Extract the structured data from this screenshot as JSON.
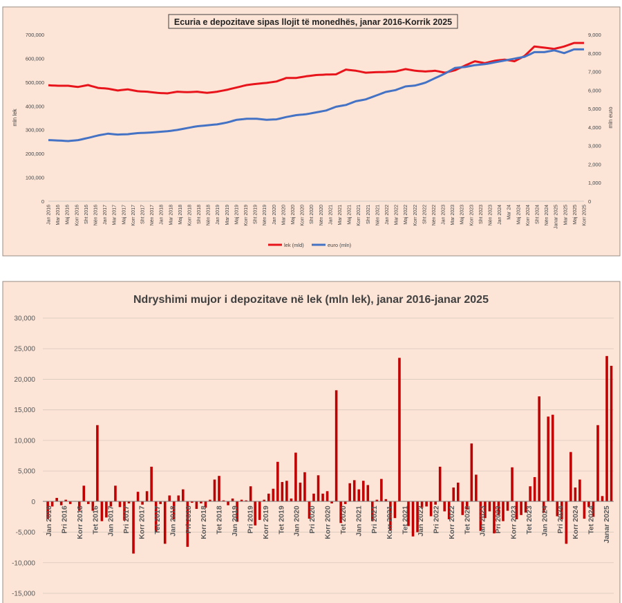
{
  "chart_data": [
    {
      "type": "line",
      "title": "Ecuria e depozitave sipas llojit të monedhës, janar 2016-Korrik 2025",
      "ylabel": "mln lek",
      "y2label": "mln euro",
      "ylim": [
        0,
        700000
      ],
      "y2lim": [
        0,
        9000
      ],
      "yticks": [
        "0",
        "100,000",
        "200,000",
        "300,000",
        "400,000",
        "500,000",
        "600,000",
        "700,000"
      ],
      "y2ticks": [
        "0",
        "1,000",
        "2,000",
        "3,000",
        "4,000",
        "5,000",
        "6,000",
        "7,000",
        "8,000",
        "9,000"
      ],
      "xtick_labels": [
        "Jan 2016",
        "Mar 2016",
        "Maj 2016",
        "Korr 2016",
        "Sht 2016",
        "Nën 2016",
        "Jan 2017",
        "Mar 2017",
        "Maj 2017",
        "Korr 2017",
        "Sht 2017",
        "Nën 2017",
        "Jan 2018",
        "Mar 2018",
        "Maj 2018",
        "Korr 2018",
        "Sht 2018",
        "Nën 2018",
        "Jan 2019",
        "Mar 2019",
        "Maj 2019",
        "Korr 2019",
        "Sht 2019",
        "Nën 2019",
        "Jan 2020",
        "Mar 2020",
        "Maj 2020",
        "Korr 2020",
        "Sht 2020",
        "Nën 2020",
        "Jan 2021",
        "Mar 2021",
        "Maj 2021",
        "Korr 2021",
        "Sht 2021",
        "Nën 2021",
        "Jan 2022",
        "Mar 2022",
        "Maj 2022",
        "Korr 2022",
        "Sht 2022",
        "Nën 2022",
        "Jan 2023",
        "Mar 2023",
        "Maj 2023",
        "Korr 2023",
        "Sht 2023",
        "Nën 2023",
        "Jan 2024",
        "Mar 24",
        "Maj 2024",
        "Korr 2024",
        "Sht 2024",
        "Nën 2024",
        "Janar 2025",
        "Mar 2025",
        "Maj 2025",
        "Korr 2025"
      ],
      "series": [
        {
          "name": "lek (mld)",
          "axis": "left",
          "color": "#e8141b",
          "anchors": [
            [
              0,
              487000
            ],
            [
              3,
              485000
            ],
            [
              6,
              485000
            ],
            [
              9,
              480000
            ],
            [
              12,
              488000
            ],
            [
              15,
              476000
            ],
            [
              18,
              473000
            ],
            [
              21,
              465000
            ],
            [
              24,
              470000
            ],
            [
              27,
              462000
            ],
            [
              30,
              460000
            ],
            [
              33,
              455000
            ],
            [
              36,
              453000
            ],
            [
              39,
              460000
            ],
            [
              42,
              458000
            ],
            [
              45,
              460000
            ],
            [
              48,
              455000
            ],
            [
              51,
              460000
            ],
            [
              54,
              468000
            ],
            [
              57,
              478000
            ],
            [
              60,
              488000
            ],
            [
              63,
              493000
            ],
            [
              66,
              497000
            ],
            [
              69,
              503000
            ],
            [
              72,
              518000
            ],
            [
              75,
              518000
            ],
            [
              78,
              525000
            ],
            [
              81,
              530000
            ],
            [
              84,
              532000
            ],
            [
              87,
              533000
            ],
            [
              90,
              553000
            ],
            [
              93,
              548000
            ],
            [
              96,
              540000
            ],
            [
              99,
              542000
            ],
            [
              102,
              543000
            ],
            [
              105,
              545000
            ],
            [
              108,
              555000
            ],
            [
              111,
              548000
            ],
            [
              114,
              545000
            ],
            [
              117,
              548000
            ],
            [
              120,
              540000
            ],
            [
              123,
              550000
            ],
            [
              126,
              570000
            ],
            [
              129,
              588000
            ],
            [
              132,
              580000
            ],
            [
              135,
              590000
            ],
            [
              138,
              595000
            ],
            [
              141,
              588000
            ],
            [
              144,
              610000
            ],
            [
              147,
              650000
            ],
            [
              150,
              645000
            ],
            [
              153,
              640000
            ],
            [
              156,
              650000
            ],
            [
              159,
              665000
            ]
          ]
        },
        {
          "name": "euro (mln)",
          "axis": "right",
          "color": "#4472c4",
          "anchors": [
            [
              0,
              3300
            ],
            [
              3,
              3280
            ],
            [
              6,
              3250
            ],
            [
              9,
              3300
            ],
            [
              12,
              3420
            ],
            [
              15,
              3550
            ],
            [
              18,
              3650
            ],
            [
              21,
              3600
            ],
            [
              24,
              3620
            ],
            [
              27,
              3680
            ],
            [
              30,
              3700
            ],
            [
              33,
              3740
            ],
            [
              36,
              3780
            ],
            [
              39,
              3850
            ],
            [
              42,
              3950
            ],
            [
              45,
              4050
            ],
            [
              48,
              4100
            ],
            [
              51,
              4150
            ],
            [
              54,
              4250
            ],
            [
              57,
              4400
            ],
            [
              60,
              4450
            ],
            [
              63,
              4450
            ],
            [
              66,
              4400
            ],
            [
              69,
              4420
            ],
            [
              72,
              4550
            ],
            [
              75,
              4650
            ],
            [
              78,
              4700
            ],
            [
              81,
              4800
            ],
            [
              84,
              4900
            ],
            [
              87,
              5100
            ],
            [
              90,
              5200
            ],
            [
              93,
              5400
            ],
            [
              96,
              5500
            ],
            [
              99,
              5700
            ],
            [
              102,
              5900
            ],
            [
              105,
              6000
            ],
            [
              108,
              6200
            ],
            [
              111,
              6250
            ],
            [
              114,
              6400
            ],
            [
              117,
              6650
            ],
            [
              120,
              6900
            ],
            [
              123,
              7200
            ],
            [
              126,
              7250
            ],
            [
              129,
              7350
            ],
            [
              132,
              7400
            ],
            [
              135,
              7500
            ],
            [
              138,
              7600
            ],
            [
              141,
              7700
            ],
            [
              144,
              7800
            ],
            [
              147,
              8050
            ],
            [
              150,
              8050
            ],
            [
              153,
              8150
            ],
            [
              156,
              8000
            ],
            [
              159,
              8200
            ]
          ]
        }
      ],
      "legend": "bottom",
      "legend_entries": [
        "lek (mld)",
        "euro (mln)"
      ]
    },
    {
      "type": "bar",
      "title": "Ndryshimi mujor i depozitave në lek (mln lek), janar 2016-janar 2025",
      "ylim": [
        -15000,
        30000
      ],
      "yticks": [
        "-15,000",
        "-10,000",
        "-5,000",
        "0",
        "5,000",
        "10,000",
        "15,000",
        "20,000",
        "25,000",
        "30,000"
      ],
      "xtick_labels": [
        "Jan 2016",
        "Pri 2016",
        "Korr 2016",
        "Tet 2016",
        "Jan 2017",
        "Pri 2017",
        "Korr 2017",
        "Tet 2017",
        "Jan 2018",
        "Pri 2018",
        "Korr 2018",
        "Tet 2018",
        "Jan 2019",
        "Pri 2019",
        "Korr 2019",
        "Tet 2019",
        "Jan 2020",
        "Pri 2020",
        "Korr 2020",
        "Tet 2020",
        "Jan 2021",
        "Pri 2021",
        "Korr 2021",
        "Tet 2021",
        "Jan 2022",
        "Pri 2022",
        "Korr 2022",
        "Tet 2022",
        "Jan 2023",
        "Pri 2023",
        "Korr 2023",
        "Tet 2023",
        "Jan 2024",
        "Pri 2024",
        "Korr 2024",
        "Tet 2024",
        "Janar 2025"
      ],
      "color": "#c00000",
      "values": [
        -2800,
        -800,
        600,
        -600,
        300,
        -400,
        100,
        -1500,
        2600,
        -400,
        -1500,
        12500,
        -3200,
        -2600,
        -800,
        2600,
        -900,
        -3100,
        -300,
        -8500,
        1600,
        -500,
        1700,
        5700,
        -5000,
        -400,
        -6900,
        1000,
        -2900,
        1000,
        2000,
        -7400,
        -200,
        -1200,
        -300,
        -1000,
        300,
        3600,
        4200,
        200,
        -600,
        500,
        -3300,
        300,
        200,
        2500,
        -3900,
        -3000,
        300,
        1300,
        2100,
        6500,
        3200,
        3400,
        500,
        8000,
        3100,
        4800,
        -2800,
        1300,
        4300,
        1300,
        1700,
        -300,
        18200,
        -3500,
        -400,
        3000,
        3500,
        2000,
        3400,
        2700,
        -3200,
        300,
        3700,
        400,
        -4700,
        -2700,
        23500,
        100,
        -4000,
        -5700,
        -5000,
        -1000,
        -800,
        -2400,
        -500,
        5700,
        -1600,
        -2900,
        2300,
        3100,
        -2200,
        -1300,
        9500,
        4400,
        -4800,
        -2700,
        -1600,
        -5200,
        -2300,
        -3200,
        -1500,
        5600,
        -2900,
        -2200,
        -1800,
        2500,
        4000,
        17200,
        -1800,
        13900,
        14200,
        -2400,
        -2900,
        -6900,
        8100,
        2300,
        3600,
        -2800,
        -900,
        -2500,
        12500,
        900,
        23800,
        22200
      ]
    }
  ]
}
